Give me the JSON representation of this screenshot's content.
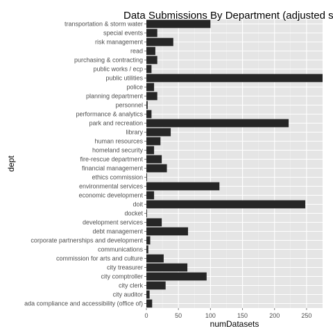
{
  "chart_data": {
    "type": "bar",
    "orientation": "horizontal",
    "title": "Data Submissions By Department (adjusted sca",
    "xlabel": "numDatasets",
    "ylabel": "dept",
    "xlim": [
      0,
      275
    ],
    "xticks": [
      0,
      50,
      100,
      150,
      200,
      250
    ],
    "grid": true,
    "legend": "none",
    "colors": {
      "bar": "#262626",
      "panel": "#e5e5e5",
      "grid": "#ffffff",
      "text": "#4d4d4d"
    },
    "categories": [
      "transportation & storm water",
      "special events",
      "risk management",
      "read",
      "purchasing & contracting",
      "public works / ecp",
      "public utilities",
      "police",
      "planning department",
      "personnel",
      "performance & analytics",
      "park and recreation",
      "library",
      "human resources",
      "homeland security",
      "fire-rescue department",
      "financial management",
      "ethics commission",
      "environmental services",
      "economic development",
      "doit",
      "docket",
      "development services",
      "debt management",
      "corporate partnerships and development",
      "communications",
      "commission for arts and culture",
      "city treasurer",
      "city comptroller",
      "city clerk",
      "city auditor",
      "ada compliance and accessibility (office of)"
    ],
    "values": [
      100,
      17,
      42,
      14,
      17,
      8,
      280,
      12,
      17,
      2,
      8,
      222,
      38,
      22,
      12,
      24,
      32,
      1,
      114,
      12,
      248,
      1,
      24,
      65,
      6,
      3,
      27,
      64,
      94,
      30,
      5,
      9
    ]
  }
}
